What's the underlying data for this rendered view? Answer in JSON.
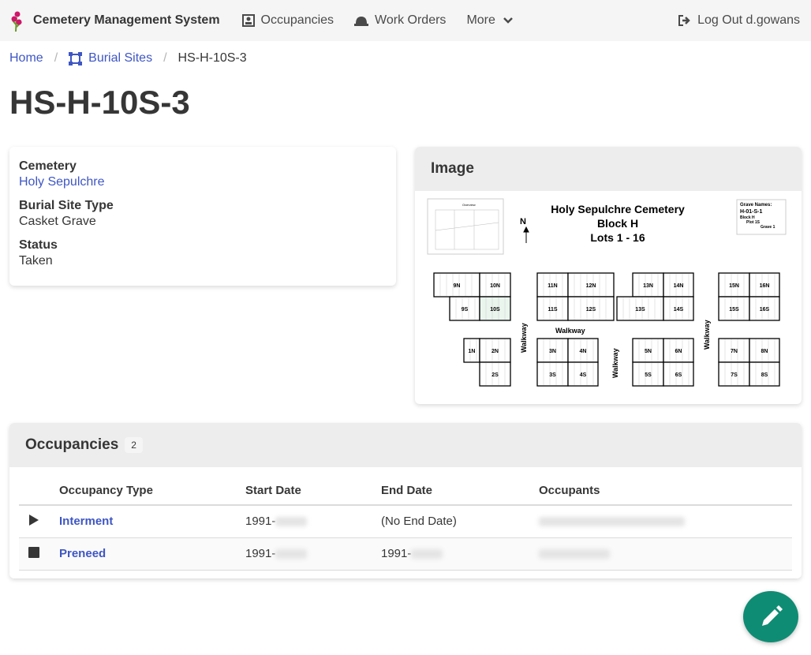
{
  "nav": {
    "brand": "Cemetery Management System",
    "items": [
      {
        "label": "Occupancies",
        "icon": "occupancy-icon"
      },
      {
        "label": "Work Orders",
        "icon": "hard-hat-icon"
      },
      {
        "label": "More",
        "icon": "chevron-down-icon"
      }
    ],
    "logout": "Log Out d.gowans"
  },
  "breadcrumb": {
    "home": "Home",
    "burial_sites": "Burial Sites",
    "current": "HS-H-10S-3"
  },
  "title": "HS-H-10S-3",
  "info": {
    "cemetery_label": "Cemetery",
    "cemetery": "Holy Sepulchre",
    "type_label": "Burial Site Type",
    "type": "Casket Grave",
    "status_label": "Status",
    "status": "Taken"
  },
  "image": {
    "heading": "Image",
    "map": {
      "title1": "Holy Sepulchre Cemetery",
      "title2": "Block H",
      "title3": "Lots 1 - 16",
      "north": "N",
      "overview": "Overview",
      "legend": [
        "Grave Names:",
        "H-01-S-1",
        "Block H",
        "Plot 1S",
        "Grave 1"
      ],
      "walkway": "Walkway",
      "highlight": "10S",
      "highlight_color": "#eaf5ee"
    }
  },
  "occupancies": {
    "heading": "Occupancies",
    "count": "2",
    "columns": [
      "Occupancy Type",
      "Start Date",
      "End Date",
      "Occupants"
    ],
    "rows": [
      {
        "icon": "play-icon",
        "type": "Interment",
        "start": "1991-",
        "end": "(No End Date)"
      },
      {
        "icon": "stop-icon",
        "type": "Preneed",
        "start": "1991-",
        "end": "1991-"
      }
    ]
  },
  "accent": "#3e56c4",
  "fab_color": "#0f8c74"
}
